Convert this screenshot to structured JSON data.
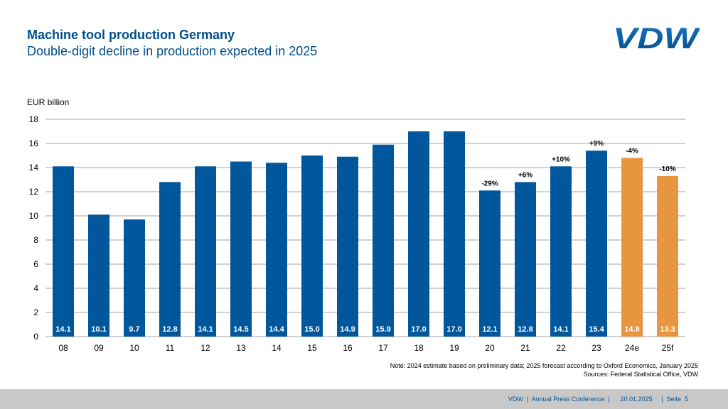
{
  "header": {
    "title": "Machine tool production Germany",
    "subtitle": "Double-digit decline in production expected in 2025",
    "logo_text": "VDW"
  },
  "chart_data": {
    "type": "bar",
    "ylabel": "EUR billion",
    "ylim": [
      0,
      18
    ],
    "yticks": [
      0,
      2,
      4,
      6,
      8,
      10,
      12,
      14,
      16,
      18
    ],
    "grid": true,
    "categories": [
      "08",
      "09",
      "10",
      "11",
      "12",
      "13",
      "14",
      "15",
      "16",
      "17",
      "18",
      "19",
      "20",
      "21",
      "22",
      "23",
      "24e",
      "25f"
    ],
    "values": [
      14.1,
      10.1,
      9.7,
      12.8,
      14.1,
      14.5,
      14.4,
      15.0,
      14.9,
      15.9,
      17.0,
      17.0,
      12.1,
      12.8,
      14.1,
      15.4,
      14.8,
      13.3
    ],
    "value_labels": [
      "14.1",
      "10.1",
      "9.7",
      "12.8",
      "14.1",
      "14.5",
      "14.4",
      "15.0",
      "14.9",
      "15.9",
      "17.0",
      "17.0",
      "12.1",
      "12.8",
      "14.1",
      "15.4",
      "14.8",
      "13.3"
    ],
    "bar_types": [
      "actual",
      "actual",
      "actual",
      "actual",
      "actual",
      "actual",
      "actual",
      "actual",
      "actual",
      "actual",
      "actual",
      "actual",
      "actual",
      "actual",
      "actual",
      "actual",
      "forecast",
      "forecast"
    ],
    "change_labels": [
      "",
      "",
      "",
      "",
      "",
      "",
      "",
      "",
      "",
      "",
      "",
      "",
      "-29%",
      "+6%",
      "+10%",
      "+9%",
      "-4%",
      "-10%"
    ],
    "colors": {
      "actual": "#00579c",
      "forecast": "#e8953f",
      "grid": "#a6a6a6",
      "text": "#000000"
    }
  },
  "notes": {
    "line1": "Note: 2024 estimate based on preliminary data; 2025 forecast according to Oxford Economics, January 2025",
    "line2": "Sources: Federal Statistical Office, VDW"
  },
  "footer": {
    "org": "VDW",
    "event": "Annual Press Conference",
    "date": "20.01.2025",
    "page": "Seite  5"
  }
}
